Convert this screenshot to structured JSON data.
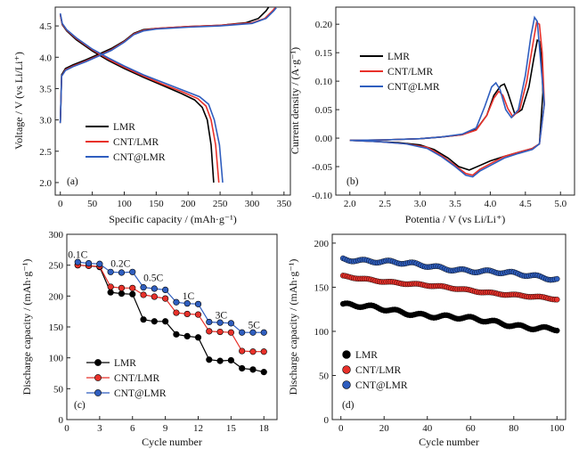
{
  "colors": {
    "LMR": "#000000",
    "CNT/LMR": "#e8312a",
    "CNT@LMR": "#2f5ebf"
  },
  "chart_data": [
    {
      "type": "line",
      "panel": "(a)",
      "xlabel": "Specific capacity / (mAh·g⁻¹)",
      "ylabel": "Voltage / V (vs Li/Li⁺)",
      "xlim": [
        -8,
        360
      ],
      "ylim": [
        1.8,
        4.8
      ],
      "xticks": [
        0,
        50,
        100,
        150,
        200,
        250,
        300,
        350
      ],
      "yticks": [
        2.0,
        2.5,
        3.0,
        3.5,
        4.0,
        4.5
      ],
      "legend": "lower-left",
      "grid": false,
      "series": [
        {
          "name": "LMR",
          "color_key": "LMR",
          "charge": [
            [
              0,
              2.95
            ],
            [
              2,
              3.72
            ],
            [
              8,
              3.82
            ],
            [
              20,
              3.88
            ],
            [
              40,
              3.96
            ],
            [
              60,
              4.05
            ],
            [
              80,
              4.14
            ],
            [
              100,
              4.26
            ],
            [
              115,
              4.38
            ],
            [
              130,
              4.44
            ],
            [
              150,
              4.46
            ],
            [
              200,
              4.49
            ],
            [
              250,
              4.51
            ],
            [
              290,
              4.55
            ],
            [
              310,
              4.62
            ],
            [
              322,
              4.74
            ],
            [
              326,
              4.8
            ]
          ],
          "discharge": [
            [
              0,
              4.68
            ],
            [
              3,
              4.52
            ],
            [
              10,
              4.42
            ],
            [
              25,
              4.28
            ],
            [
              50,
              4.1
            ],
            [
              75,
              3.95
            ],
            [
              100,
              3.82
            ],
            [
              130,
              3.68
            ],
            [
              160,
              3.55
            ],
            [
              190,
              3.42
            ],
            [
              210,
              3.32
            ],
            [
              222,
              3.2
            ],
            [
              230,
              3.0
            ],
            [
              236,
              2.6
            ],
            [
              240,
              2.0
            ]
          ]
        },
        {
          "name": "CNT/LMR",
          "color_key": "CNT/LMR",
          "charge": [
            [
              0,
              2.95
            ],
            [
              2,
              3.7
            ],
            [
              8,
              3.8
            ],
            [
              20,
              3.86
            ],
            [
              40,
              3.94
            ],
            [
              60,
              4.03
            ],
            [
              80,
              4.12
            ],
            [
              100,
              4.25
            ],
            [
              115,
              4.37
            ],
            [
              130,
              4.43
            ],
            [
              150,
              4.46
            ],
            [
              200,
              4.49
            ],
            [
              250,
              4.51
            ],
            [
              300,
              4.55
            ],
            [
              320,
              4.62
            ],
            [
              332,
              4.74
            ],
            [
              336,
              4.79
            ]
          ],
          "discharge": [
            [
              0,
              4.68
            ],
            [
              3,
              4.53
            ],
            [
              10,
              4.43
            ],
            [
              25,
              4.3
            ],
            [
              50,
              4.12
            ],
            [
              75,
              3.97
            ],
            [
              100,
              3.84
            ],
            [
              130,
              3.7
            ],
            [
              160,
              3.57
            ],
            [
              190,
              3.45
            ],
            [
              215,
              3.34
            ],
            [
              228,
              3.22
            ],
            [
              236,
              3.0
            ],
            [
              243,
              2.6
            ],
            [
              248,
              2.0
            ]
          ]
        },
        {
          "name": "CNT@LMR",
          "color_key": "CNT@LMR",
          "charge": [
            [
              0,
              2.95
            ],
            [
              2,
              3.7
            ],
            [
              8,
              3.79
            ],
            [
              20,
              3.85
            ],
            [
              40,
              3.93
            ],
            [
              60,
              4.02
            ],
            [
              80,
              4.11
            ],
            [
              100,
              4.24
            ],
            [
              115,
              4.36
            ],
            [
              130,
              4.42
            ],
            [
              150,
              4.45
            ],
            [
              200,
              4.48
            ],
            [
              250,
              4.5
            ],
            [
              300,
              4.54
            ],
            [
              322,
              4.62
            ],
            [
              334,
              4.74
            ],
            [
              338,
              4.79
            ]
          ],
          "discharge": [
            [
              0,
              4.7
            ],
            [
              3,
              4.54
            ],
            [
              10,
              4.44
            ],
            [
              25,
              4.31
            ],
            [
              50,
              4.13
            ],
            [
              75,
              3.99
            ],
            [
              100,
              3.86
            ],
            [
              130,
              3.72
            ],
            [
              160,
              3.6
            ],
            [
              190,
              3.48
            ],
            [
              218,
              3.37
            ],
            [
              232,
              3.25
            ],
            [
              241,
              3.0
            ],
            [
              249,
              2.6
            ],
            [
              254,
              2.0
            ]
          ]
        }
      ]
    },
    {
      "type": "line",
      "panel": "(b)",
      "xlabel": "Potentia / V (vs Li/Li⁺)",
      "ylabel": "Current density / (A·g⁻¹)",
      "xlim": [
        1.8,
        5.2
      ],
      "ylim": [
        -0.1,
        0.23
      ],
      "xticks": [
        2.0,
        2.5,
        3.0,
        3.5,
        4.0,
        4.5,
        5.0
      ],
      "yticks": [
        -0.1,
        -0.05,
        0.0,
        0.05,
        0.1,
        0.15,
        0.2
      ],
      "legend": "upper-left",
      "grid": false,
      "series": [
        {
          "name": "LMR",
          "color_key": "LMR",
          "points": [
            [
              2.0,
              -0.004
            ],
            [
              2.5,
              -0.003
            ],
            [
              3.0,
              -0.001
            ],
            [
              3.3,
              0.002
            ],
            [
              3.6,
              0.006
            ],
            [
              3.8,
              0.015
            ],
            [
              3.95,
              0.04
            ],
            [
              4.05,
              0.075
            ],
            [
              4.15,
              0.092
            ],
            [
              4.2,
              0.095
            ],
            [
              4.25,
              0.08
            ],
            [
              4.35,
              0.042
            ],
            [
              4.45,
              0.05
            ],
            [
              4.55,
              0.09
            ],
            [
              4.62,
              0.14
            ],
            [
              4.67,
              0.172
            ],
            [
              4.7,
              0.17
            ],
            [
              4.73,
              0.14
            ],
            [
              4.75,
              0.08
            ],
            [
              4.7,
              -0.01
            ],
            [
              4.6,
              -0.018
            ],
            [
              4.4,
              -0.025
            ],
            [
              4.2,
              -0.032
            ],
            [
              4.0,
              -0.04
            ],
            [
              3.85,
              -0.048
            ],
            [
              3.7,
              -0.056
            ],
            [
              3.55,
              -0.05
            ],
            [
              3.4,
              -0.035
            ],
            [
              3.2,
              -0.02
            ],
            [
              3.0,
              -0.012
            ],
            [
              2.7,
              -0.008
            ],
            [
              2.4,
              -0.006
            ],
            [
              2.0,
              -0.004
            ]
          ]
        },
        {
          "name": "CNT/LMR",
          "color_key": "CNT/LMR",
          "points": [
            [
              2.0,
              -0.004
            ],
            [
              2.5,
              -0.003
            ],
            [
              3.0,
              -0.001
            ],
            [
              3.3,
              0.002
            ],
            [
              3.6,
              0.006
            ],
            [
              3.8,
              0.014
            ],
            [
              3.95,
              0.04
            ],
            [
              4.05,
              0.07
            ],
            [
              4.12,
              0.082
            ],
            [
              4.18,
              0.075
            ],
            [
              4.25,
              0.052
            ],
            [
              4.32,
              0.038
            ],
            [
              4.42,
              0.05
            ],
            [
              4.52,
              0.1
            ],
            [
              4.6,
              0.16
            ],
            [
              4.66,
              0.203
            ],
            [
              4.7,
              0.2
            ],
            [
              4.74,
              0.15
            ],
            [
              4.77,
              0.06
            ],
            [
              4.7,
              -0.01
            ],
            [
              4.6,
              -0.018
            ],
            [
              4.4,
              -0.025
            ],
            [
              4.2,
              -0.032
            ],
            [
              4.0,
              -0.045
            ],
            [
              3.85,
              -0.055
            ],
            [
              3.75,
              -0.065
            ],
            [
              3.65,
              -0.062
            ],
            [
              3.5,
              -0.048
            ],
            [
              3.3,
              -0.03
            ],
            [
              3.1,
              -0.016
            ],
            [
              2.8,
              -0.01
            ],
            [
              2.4,
              -0.006
            ],
            [
              2.0,
              -0.004
            ]
          ]
        },
        {
          "name": "CNT@LMR",
          "color_key": "CNT@LMR",
          "points": [
            [
              2.0,
              -0.004
            ],
            [
              2.5,
              -0.003
            ],
            [
              3.0,
              -0.001
            ],
            [
              3.3,
              0.002
            ],
            [
              3.6,
              0.007
            ],
            [
              3.8,
              0.018
            ],
            [
              3.92,
              0.055
            ],
            [
              4.02,
              0.09
            ],
            [
              4.08,
              0.097
            ],
            [
              4.14,
              0.085
            ],
            [
              4.22,
              0.05
            ],
            [
              4.3,
              0.036
            ],
            [
              4.4,
              0.05
            ],
            [
              4.5,
              0.11
            ],
            [
              4.58,
              0.18
            ],
            [
              4.63,
              0.212
            ],
            [
              4.67,
              0.205
            ],
            [
              4.72,
              0.13
            ],
            [
              4.77,
              0.06
            ],
            [
              4.7,
              -0.01
            ],
            [
              4.6,
              -0.02
            ],
            [
              4.4,
              -0.027
            ],
            [
              4.2,
              -0.035
            ],
            [
              4.0,
              -0.048
            ],
            [
              3.85,
              -0.058
            ],
            [
              3.75,
              -0.068
            ],
            [
              3.65,
              -0.065
            ],
            [
              3.5,
              -0.05
            ],
            [
              3.3,
              -0.032
            ],
            [
              3.1,
              -0.018
            ],
            [
              2.8,
              -0.01
            ],
            [
              2.4,
              -0.006
            ],
            [
              2.0,
              -0.004
            ]
          ]
        }
      ]
    },
    {
      "type": "scatter",
      "panel": "(c)",
      "xlabel": "Cycle number",
      "ylabel": "Discharge capacity / (mAh·g⁻¹)",
      "xlim": [
        0,
        19.2
      ],
      "ylim": [
        0,
        300
      ],
      "xticks": [
        0,
        3,
        6,
        9,
        12,
        15,
        18
      ],
      "yticks": [
        0,
        50,
        100,
        150,
        200,
        250,
        300
      ],
      "legend": "lower-left",
      "grid": false,
      "rate_labels": [
        {
          "text": "0.1C",
          "x": 1.0,
          "y": 262
        },
        {
          "text": "0.2C",
          "x": 4.9,
          "y": 247
        },
        {
          "text": "0.5C",
          "x": 7.9,
          "y": 224
        },
        {
          "text": "1C",
          "x": 11.1,
          "y": 195
        },
        {
          "text": "3C",
          "x": 14.1,
          "y": 164
        },
        {
          "text": "5C",
          "x": 17.1,
          "y": 148
        }
      ],
      "x": [
        1,
        2,
        3,
        4,
        5,
        6,
        7,
        8,
        9,
        10,
        11,
        12,
        13,
        14,
        15,
        16,
        17,
        18
      ],
      "series": [
        {
          "name": "LMR",
          "color_key": "LMR",
          "values": [
            250,
            249,
            247,
            206,
            204,
            203,
            162,
            159,
            159,
            138,
            135,
            133,
            97,
            95,
            96,
            83,
            81,
            77
          ]
        },
        {
          "name": "CNT/LMR",
          "color_key": "CNT/LMR",
          "values": [
            250,
            249,
            248,
            215,
            213,
            213,
            202,
            199,
            196,
            173,
            171,
            170,
            143,
            142,
            141,
            111,
            110,
            110
          ]
        },
        {
          "name": "CNT@LMR",
          "color_key": "CNT@LMR",
          "values": [
            255,
            253,
            252,
            239,
            238,
            239,
            214,
            212,
            210,
            190,
            188,
            187,
            158,
            157,
            156,
            141,
            141,
            141
          ]
        }
      ]
    },
    {
      "type": "scatter",
      "panel": "(d)",
      "xlabel": "Cycle number",
      "ylabel": "Discharge capacity / (mAh·g⁻¹)",
      "xlim": [
        -4,
        104
      ],
      "ylim": [
        0,
        210
      ],
      "xticks": [
        0,
        20,
        40,
        60,
        80,
        100
      ],
      "yticks": [
        0,
        50,
        100,
        150,
        200
      ],
      "legend": "lower-left",
      "grid": false,
      "series": [
        {
          "name": "LMR",
          "color_key": "LMR",
          "start": 130,
          "end": 102,
          "wobble": 3
        },
        {
          "name": "CNT/LMR",
          "color_key": "CNT/LMR",
          "start": 162,
          "end": 136,
          "wobble": 1.2
        },
        {
          "name": "CNT@LMR",
          "color_key": "CNT@LMR",
          "start": 183,
          "end": 160,
          "wobble": 2.5
        }
      ]
    }
  ]
}
